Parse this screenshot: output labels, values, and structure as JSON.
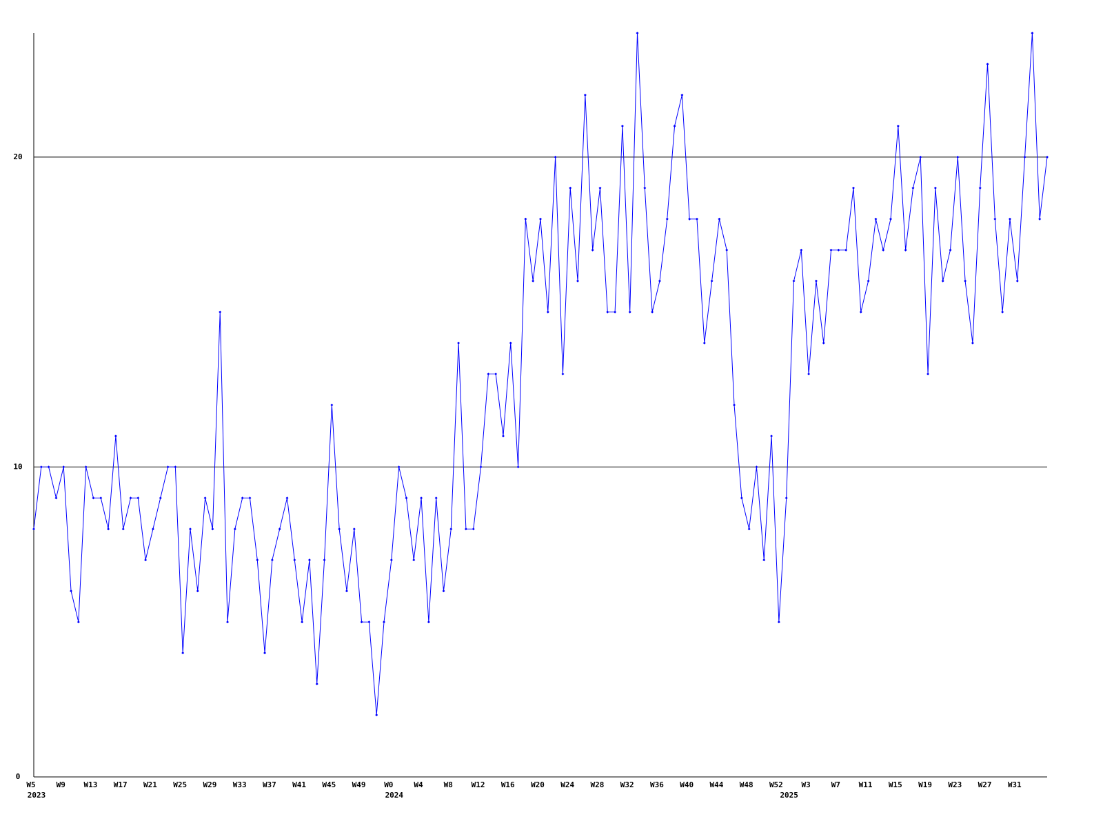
{
  "chart_data": {
    "type": "line",
    "categories": [
      "W5",
      null,
      null,
      null,
      "W9",
      null,
      null,
      null,
      "W13",
      null,
      null,
      null,
      "W17",
      null,
      null,
      null,
      "W21",
      null,
      null,
      null,
      "W25",
      null,
      null,
      null,
      "W29",
      null,
      null,
      null,
      "W33",
      null,
      null,
      null,
      "W37",
      null,
      null,
      null,
      "W41",
      null,
      null,
      null,
      "W45",
      null,
      null,
      null,
      "W49",
      null,
      null,
      null,
      "W0",
      null,
      null,
      null,
      "W4",
      null,
      null,
      null,
      "W8",
      null,
      null,
      null,
      "W12",
      null,
      null,
      null,
      "W16",
      null,
      null,
      null,
      "W20",
      null,
      null,
      null,
      "W24",
      null,
      null,
      null,
      "W28",
      null,
      null,
      null,
      "W32",
      null,
      null,
      null,
      "W36",
      null,
      null,
      null,
      "W40",
      null,
      null,
      null,
      "W44",
      null,
      null,
      null,
      "W48",
      null,
      null,
      null,
      "W52",
      null,
      null,
      null,
      "W3",
      null,
      null,
      null,
      "W7",
      null,
      null,
      null,
      "W11",
      null,
      null,
      null,
      "W15",
      null,
      null,
      null,
      "W19",
      null,
      null,
      null,
      "W23",
      null,
      null,
      null,
      "W27",
      null,
      null,
      null,
      "W31",
      null,
      null,
      null,
      null
    ],
    "years": [
      "2023",
      null,
      null,
      null,
      null,
      null,
      null,
      null,
      null,
      null,
      null,
      null,
      null,
      null,
      null,
      null,
      null,
      null,
      null,
      null,
      null,
      null,
      null,
      null,
      null,
      null,
      null,
      null,
      null,
      null,
      null,
      null,
      null,
      null,
      null,
      null,
      null,
      null,
      null,
      null,
      null,
      null,
      null,
      null,
      null,
      null,
      null,
      null,
      "2024",
      null,
      null,
      null,
      null,
      null,
      null,
      null,
      null,
      null,
      null,
      null,
      null,
      null,
      null,
      null,
      null,
      null,
      null,
      null,
      null,
      null,
      null,
      null,
      null,
      null,
      null,
      null,
      null,
      null,
      null,
      null,
      null,
      null,
      null,
      null,
      null,
      null,
      null,
      null,
      null,
      null,
      null,
      null,
      null,
      null,
      null,
      null,
      null,
      null,
      null,
      null,
      null,
      "2025",
      null,
      null,
      null,
      null,
      null,
      null,
      null,
      null,
      null,
      null,
      null,
      null,
      null,
      null,
      null,
      null,
      null,
      null,
      null,
      null,
      null,
      null,
      null,
      null,
      null,
      null,
      null,
      null,
      null,
      null,
      null,
      null,
      null,
      null,
      null
    ],
    "series": [
      {
        "color": "#0000ff",
        "values": [
          8,
          10,
          10,
          9,
          10,
          6,
          5,
          10,
          9,
          9,
          8,
          11,
          8,
          9,
          9,
          7,
          8,
          9,
          10,
          10,
          4,
          8,
          6,
          9,
          8,
          15,
          5,
          8,
          9,
          9,
          7,
          4,
          7,
          8,
          9,
          7,
          5,
          7,
          3,
          7,
          12,
          8,
          6,
          8,
          5,
          5,
          2,
          5,
          7,
          10,
          9,
          7,
          9,
          5,
          9,
          6,
          8,
          14,
          8,
          8,
          10,
          13,
          13,
          11,
          14,
          10,
          18,
          16,
          18,
          15,
          20,
          13,
          19,
          16,
          22,
          17,
          19,
          15,
          15,
          21,
          15,
          24,
          19,
          15,
          16,
          18,
          21,
          22,
          18,
          18,
          14,
          16,
          18,
          17,
          12,
          9,
          8,
          10,
          7,
          11,
          5,
          9,
          16,
          17,
          13,
          16,
          14,
          17,
          17,
          17,
          19,
          15,
          16,
          18,
          17,
          18,
          21,
          17,
          19,
          20,
          13,
          19,
          16,
          17,
          20,
          16,
          14,
          19,
          23,
          18,
          15,
          18,
          16,
          20,
          24,
          18,
          20
        ]
      }
    ],
    "ylim": [
      0,
      24
    ],
    "yticks": [
      0,
      10,
      20
    ],
    "grid": true
  }
}
